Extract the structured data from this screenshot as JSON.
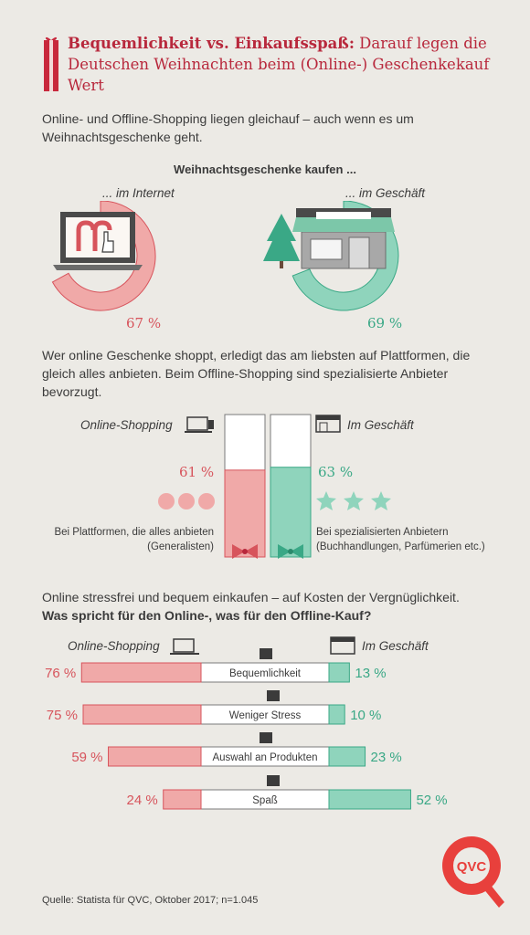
{
  "header": {
    "title_bold": "Bequemlichkeit vs. Einkaufsspaß:",
    "title_rest": " Darauf legen die Deutschen Weihnachten beim (Online-) Geschenkekauf Wert"
  },
  "intro1": "Online- und Offline-Shopping liegen gleichauf – auch wenn es um Weihnachtsgeschenke geht.",
  "section1": {
    "heading": "Weihnachtsgeschenke kaufen ...",
    "left_label": "... im Internet",
    "right_label": "... im Geschäft",
    "left_value": "67 %",
    "right_value": "69 %"
  },
  "intro2": "Wer online Geschenke shoppt, erledigt das am liebsten auf Plattformen, die gleich alles anbieten. Beim Offline-Shopping sind spezialisierte Anbieter bevorzugt.",
  "section2": {
    "online_label": "Online-Shopping",
    "offline_label": "Im Geschäft",
    "left_value": "61 %",
    "right_value": "63 %",
    "left_caption_1": "Bei Plattformen, die alles anbieten",
    "left_caption_2": "(Generalisten)",
    "right_caption_1": "Bei spezialisierten Anbietern",
    "right_caption_2": "(Buchhandlungen, Parfümerien etc.)"
  },
  "intro3_1": "Online stressfrei und bequem einkaufen – auf Kosten der Vergnüglichkeit.",
  "intro3_2": "Was spricht für den Online-, was für den Offline-Kauf?",
  "section3": {
    "online_label": "Online-Shopping",
    "offline_label": "Im Geschäft"
  },
  "source": "Quelle: Statista für QVC, Oktober 2017; n=1.045",
  "logo_text": "QVC",
  "colors": {
    "red": "#d7545c",
    "red_fill": "#f0a9a8",
    "green": "#3aa886",
    "green_fill": "#8fd4bc",
    "title": "#b8283c"
  },
  "chart_data": [
    {
      "type": "pie",
      "title": "Weihnachtsgeschenke kaufen ...",
      "categories": [
        "... im Internet",
        "... im Geschäft"
      ],
      "values": [
        67,
        69
      ],
      "unit": "%"
    },
    {
      "type": "bar",
      "categories": [
        "Bei Plattformen, die alles anbieten (Generalisten)",
        "Bei spezialisierten Anbietern (Buchhandlungen, Parfümerien etc.)"
      ],
      "series": [
        {
          "name": "Online-Shopping",
          "values": [
            61,
            null
          ]
        },
        {
          "name": "Im Geschäft",
          "values": [
            null,
            63
          ]
        }
      ],
      "unit": "%",
      "ylim": [
        0,
        100
      ]
    },
    {
      "type": "bar",
      "categories": [
        "Bequemlichkeit",
        "Weniger Stress",
        "Auswahl an Produkten",
        "Spaß"
      ],
      "series": [
        {
          "name": "Online-Shopping",
          "values": [
            76,
            75,
            59,
            24
          ]
        },
        {
          "name": "Im Geschäft",
          "values": [
            13,
            10,
            23,
            52
          ]
        }
      ],
      "value_labels_online": [
        "76 %",
        "75 %",
        "59 %",
        "24 %"
      ],
      "value_labels_offline": [
        "13 %",
        "10 %",
        "23 %",
        "52 %"
      ],
      "unit": "%"
    }
  ]
}
